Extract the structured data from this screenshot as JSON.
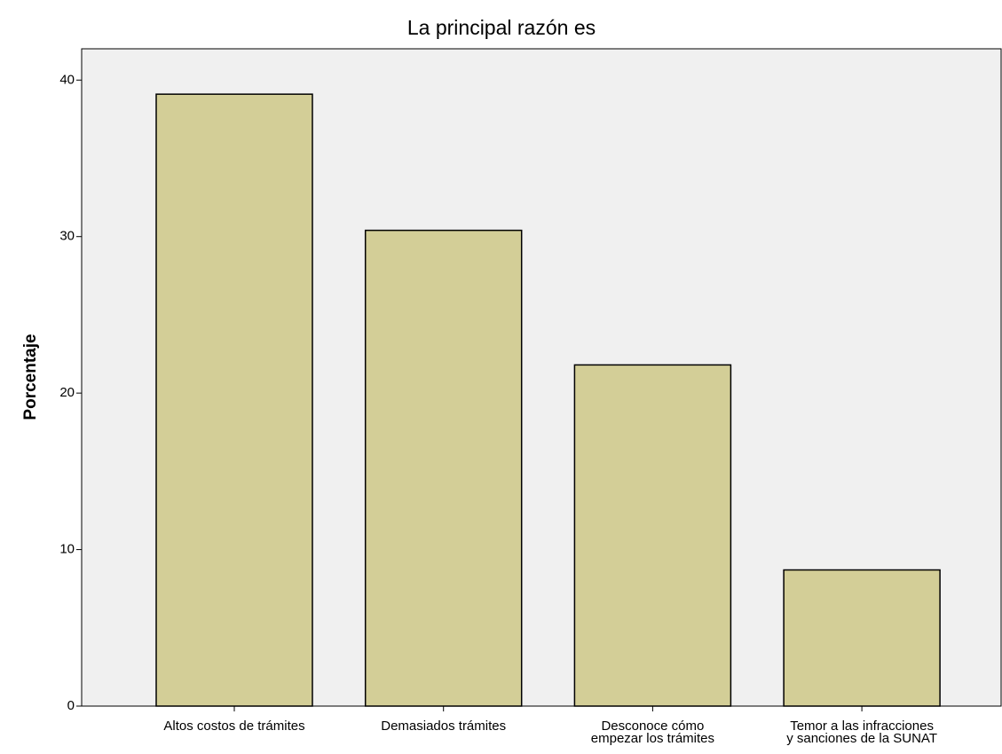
{
  "chart_data": {
    "type": "bar",
    "title": "La principal razón es",
    "y_label": "Porcentaje",
    "categories": [
      "Altos costos de trámites",
      "Demasiados trámites",
      "Desconoce cómo\nempezar los trámites",
      "Temor a las infracciones\ny sanciones de la SUNAT"
    ],
    "values": [
      39.1,
      30.4,
      21.8,
      8.7
    ],
    "color": "#d3ce97",
    "ylim": [
      0,
      42
    ],
    "yticks": [
      0,
      10,
      20,
      30,
      40
    ],
    "grid": false
  }
}
